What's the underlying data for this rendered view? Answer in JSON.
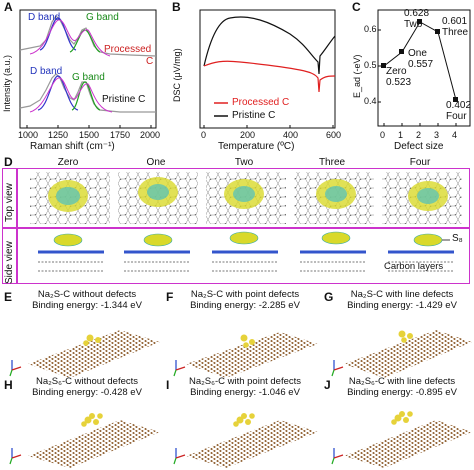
{
  "panel_A": {
    "letter": "A",
    "labels": {
      "d_band_top": "D band",
      "g_band_top": "G band",
      "processed_1": "Processed",
      "processed_2": "C",
      "d_band_bottom": "D band",
      "g_band_bottom": "G band",
      "pristine": "Pristine C"
    },
    "xlabel": "Raman shift (cm⁻¹)",
    "ylabel": "Intensity (a.u.)",
    "xticks": [
      "1000",
      "1250",
      "1500",
      "1750",
      "2000"
    ]
  },
  "panel_B": {
    "letter": "B",
    "ylabel": "DSC (μV/mg)",
    "xlabel": "Temperature (ºC)",
    "xticks": [
      "0",
      "200",
      "400",
      "600"
    ],
    "legend": [
      "Processed C",
      "Pristine C"
    ],
    "colors": {
      "processed": "#e02020",
      "pristine": "#111111"
    }
  },
  "panel_C": {
    "letter": "C",
    "ylabel": "E_ad (-eV)",
    "xlabel": "Defect size",
    "xticks": [
      "0",
      "1",
      "2",
      "3",
      "4"
    ],
    "yticks": [
      "0.4",
      "0.5",
      "0.6"
    ],
    "points": [
      {
        "name": "Zero",
        "value": "0.523"
      },
      {
        "name": "One",
        "value": "0.557"
      },
      {
        "name": "Two",
        "value": "0.628"
      },
      {
        "name": "Three",
        "value": "0.601"
      },
      {
        "name": "Four",
        "value": "0.402"
      }
    ]
  },
  "panel_D": {
    "letter": "D",
    "columns": [
      "Zero",
      "One",
      "Two",
      "Three",
      "Four"
    ],
    "row_top": "Top view",
    "row_side": "Side view",
    "s8_label": "S₈",
    "carbon_label": "Carbon layers",
    "border_color": "#cc33cc"
  },
  "panels_EJ": [
    {
      "letter": "E",
      "line1": "Na₂S-C without defects",
      "line2": "Binding energy: -1.344 eV"
    },
    {
      "letter": "F",
      "line1": "Na₂S-C with point defects",
      "line2": "Binding energy: -2.285 eV"
    },
    {
      "letter": "G",
      "line1": "Na₂S-C with line defects",
      "line2": "Binding energy: -1.429 eV"
    },
    {
      "letter": "H",
      "line1": "Na₂S₆-C without defects",
      "line2": "Binding energy: -0.428 eV"
    },
    {
      "letter": "I",
      "line1": "Na₂S₆-C with point defects",
      "line2": "Binding energy: -1.046 eV"
    },
    {
      "letter": "J",
      "line1": "Na₂S₆-C with line defects",
      "line2": "Binding energy: -0.895 eV"
    }
  ],
  "axis_labels": {
    "a": "a",
    "b": "b",
    "c": "c"
  }
}
